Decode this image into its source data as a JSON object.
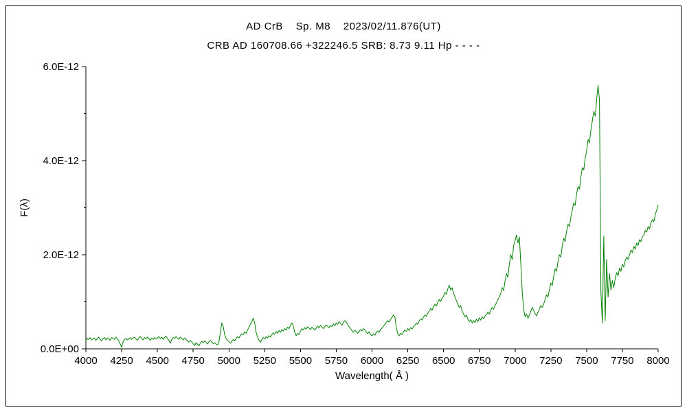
{
  "chart_data": {
    "type": "line",
    "title": "AD CrB    Sp. M8    2023/02/11.876(UT)",
    "subtitle": "CRB AD 160708.66 +322246.5 SRB: 8.73 9.11 Hp - - - -",
    "xlabel": "Wavelength( Å )",
    "ylabel": "F(λ)",
    "line_color": "#008000",
    "xlim": [
      4000,
      8000
    ],
    "ylim": [
      0,
      6e-12
    ],
    "ylim_e12": [
      0,
      6
    ],
    "grid": false,
    "legend": "none",
    "x_ticks": [
      4000,
      4250,
      4500,
      4750,
      5000,
      5250,
      5500,
      5750,
      6000,
      6250,
      6500,
      6750,
      7000,
      7250,
      7500,
      7750,
      8000
    ],
    "y_ticks": [
      {
        "v": 0,
        "label": "0.0E+00"
      },
      {
        "v": 2,
        "label": "2.0E-12"
      },
      {
        "v": 4,
        "label": "4.0E-12"
      },
      {
        "v": 6,
        "label": "6.0E-12"
      }
    ],
    "y_minor_ticks": [
      1,
      3,
      5
    ],
    "x_start": 4000,
    "x_step": 10,
    "flux_unit": 1e-12,
    "flux_e12": [
      0.18,
      0.22,
      0.2,
      0.24,
      0.19,
      0.21,
      0.23,
      0.18,
      0.22,
      0.25,
      0.2,
      0.17,
      0.22,
      0.24,
      0.19,
      0.23,
      0.21,
      0.18,
      0.24,
      0.22,
      0.2,
      0.25,
      0.21,
      0.17,
      0.1,
      0.03,
      0.15,
      0.2,
      0.22,
      0.19,
      0.21,
      0.24,
      0.2,
      0.23,
      0.25,
      0.21,
      0.18,
      0.23,
      0.26,
      0.22,
      0.19,
      0.24,
      0.21,
      0.25,
      0.22,
      0.18,
      0.23,
      0.2,
      0.24,
      0.21,
      0.23,
      0.26,
      0.22,
      0.25,
      0.2,
      0.24,
      0.27,
      0.22,
      0.18,
      0.12,
      0.2,
      0.24,
      0.22,
      0.26,
      0.23,
      0.2,
      0.25,
      0.22,
      0.19,
      0.23,
      0.2,
      0.17,
      0.14,
      0.18,
      0.15,
      0.11,
      0.07,
      0.13,
      0.1,
      0.06,
      0.12,
      0.16,
      0.13,
      0.17,
      0.14,
      0.1,
      0.15,
      0.18,
      0.14,
      0.11,
      0.13,
      0.1,
      0.08,
      0.15,
      0.35,
      0.55,
      0.48,
      0.3,
      0.22,
      0.18,
      0.15,
      0.12,
      0.16,
      0.2,
      0.17,
      0.22,
      0.26,
      0.23,
      0.28,
      0.32,
      0.3,
      0.36,
      0.33,
      0.4,
      0.46,
      0.52,
      0.58,
      0.65,
      0.55,
      0.35,
      0.25,
      0.18,
      0.14,
      0.2,
      0.24,
      0.21,
      0.26,
      0.23,
      0.28,
      0.25,
      0.3,
      0.34,
      0.31,
      0.37,
      0.33,
      0.39,
      0.35,
      0.41,
      0.38,
      0.43,
      0.4,
      0.46,
      0.43,
      0.5,
      0.55,
      0.48,
      0.35,
      0.28,
      0.33,
      0.3,
      0.38,
      0.43,
      0.4,
      0.45,
      0.42,
      0.47,
      0.44,
      0.41,
      0.46,
      0.43,
      0.4,
      0.44,
      0.48,
      0.45,
      0.5,
      0.46,
      0.43,
      0.47,
      0.51,
      0.48,
      0.45,
      0.5,
      0.47,
      0.53,
      0.49,
      0.55,
      0.52,
      0.58,
      0.54,
      0.5,
      0.56,
      0.6,
      0.57,
      0.52,
      0.47,
      0.43,
      0.39,
      0.35,
      0.4,
      0.37,
      0.33,
      0.37,
      0.41,
      0.38,
      0.43,
      0.4,
      0.36,
      0.32,
      0.36,
      0.3,
      0.28,
      0.32,
      0.29,
      0.35,
      0.38,
      0.35,
      0.41,
      0.44,
      0.48,
      0.52,
      0.56,
      0.6,
      0.57,
      0.63,
      0.67,
      0.72,
      0.68,
      0.45,
      0.32,
      0.28,
      0.33,
      0.3,
      0.36,
      0.4,
      0.37,
      0.43,
      0.39,
      0.45,
      0.42,
      0.47,
      0.5,
      0.55,
      0.52,
      0.6,
      0.64,
      0.61,
      0.68,
      0.72,
      0.69,
      0.76,
      0.8,
      0.86,
      0.82,
      0.9,
      0.95,
      0.91,
      0.99,
      1.05,
      1.01,
      1.08,
      1.12,
      1.2,
      1.16,
      1.28,
      1.35,
      1.25,
      1.3,
      1.18,
      1.1,
      1.02,
      0.95,
      0.88,
      0.92,
      0.8,
      0.74,
      0.68,
      0.72,
      0.63,
      0.58,
      0.62,
      0.55,
      0.6,
      0.56,
      0.63,
      0.58,
      0.66,
      0.61,
      0.68,
      0.64,
      0.7,
      0.72,
      0.78,
      0.74,
      0.82,
      0.88,
      0.84,
      0.92,
      0.98,
      1.05,
      1.1,
      1.18,
      1.3,
      1.24,
      1.45,
      1.6,
      1.52,
      1.8,
      2.0,
      1.9,
      2.2,
      2.3,
      2.42,
      2.25,
      2.38,
      1.8,
      1.2,
      0.85,
      0.68,
      0.74,
      0.65,
      0.72,
      0.8,
      0.88,
      0.82,
      0.75,
      0.7,
      0.78,
      0.85,
      0.92,
      0.88,
      0.95,
      1.05,
      1.15,
      1.1,
      1.25,
      1.4,
      1.35,
      1.55,
      1.7,
      1.65,
      1.85,
      2.0,
      1.95,
      2.2,
      2.35,
      2.28,
      2.5,
      2.65,
      2.6,
      2.8,
      2.95,
      3.1,
      3.05,
      3.3,
      3.45,
      3.4,
      3.65,
      3.85,
      3.8,
      4.05,
      4.2,
      4.45,
      4.38,
      4.65,
      4.85,
      5.05,
      4.95,
      5.3,
      5.6,
      5.3,
      1.2,
      0.55,
      2.4,
      0.6,
      1.9,
      1.1,
      1.6,
      1.25,
      1.45,
      1.3,
      1.5,
      1.62,
      1.55,
      1.72,
      1.65,
      1.8,
      1.74,
      1.88,
      1.95,
      1.9,
      2.0,
      2.1,
      2.05,
      2.18,
      2.12,
      2.25,
      2.2,
      2.32,
      2.28,
      2.38,
      2.42,
      2.52,
      2.48,
      2.6,
      2.55,
      2.68,
      2.75,
      2.7,
      2.85,
      2.95,
      3.05
    ]
  }
}
